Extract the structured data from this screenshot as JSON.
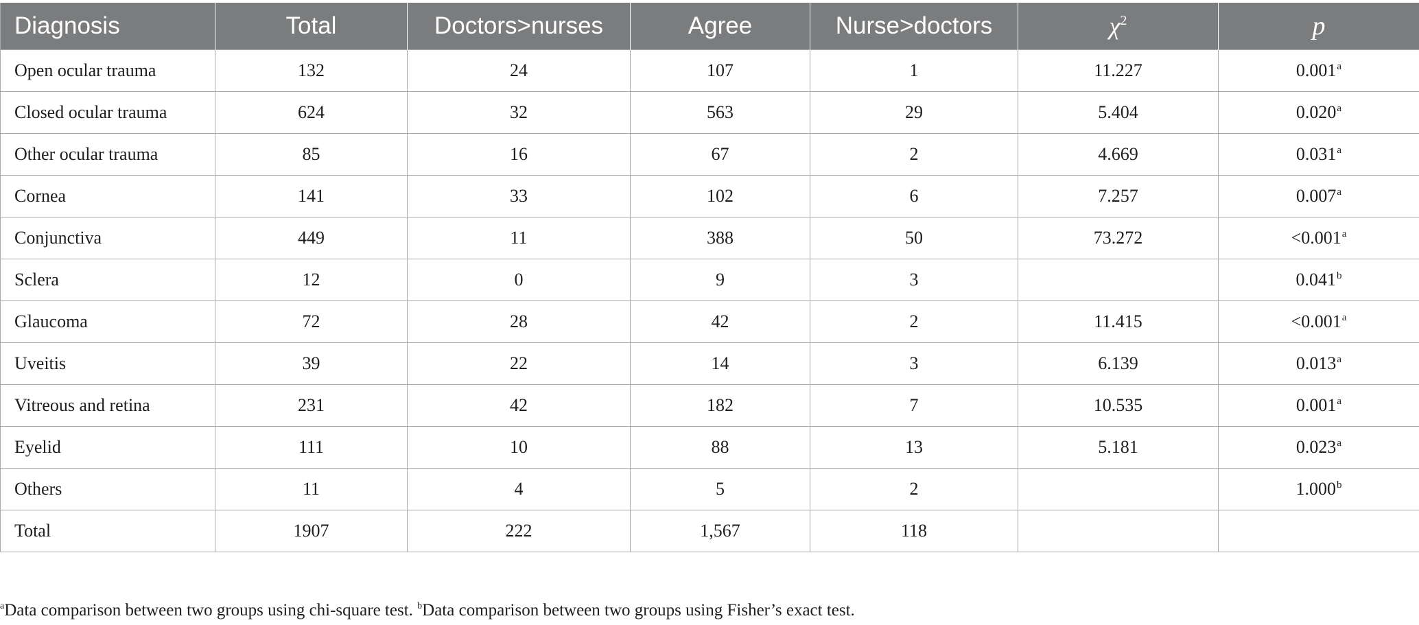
{
  "table": {
    "headers": [
      "Diagnosis",
      "Total",
      "Doctors>nurses",
      "Agree",
      "Nurse>doctors",
      "χ",
      "p"
    ],
    "chi_superscript": "2",
    "rows": [
      {
        "diagnosis": "Open ocular trauma",
        "total": "132",
        "doctors_gt_nurses": "24",
        "agree": "107",
        "nurse_gt_doctors": "1",
        "chi2": "11.227",
        "p": "0.001",
        "p_mark": "a"
      },
      {
        "diagnosis": "Closed ocular trauma",
        "total": "624",
        "doctors_gt_nurses": "32",
        "agree": "563",
        "nurse_gt_doctors": "29",
        "chi2": "5.404",
        "p": "0.020",
        "p_mark": "a"
      },
      {
        "diagnosis": "Other ocular trauma",
        "total": "85",
        "doctors_gt_nurses": "16",
        "agree": "67",
        "nurse_gt_doctors": "2",
        "chi2": "4.669",
        "p": "0.031",
        "p_mark": "a"
      },
      {
        "diagnosis": "Cornea",
        "total": "141",
        "doctors_gt_nurses": "33",
        "agree": "102",
        "nurse_gt_doctors": "6",
        "chi2": "7.257",
        "p": "0.007",
        "p_mark": "a"
      },
      {
        "diagnosis": "Conjunctiva",
        "total": "449",
        "doctors_gt_nurses": "11",
        "agree": "388",
        "nurse_gt_doctors": "50",
        "chi2": "73.272",
        "p": "<0.001",
        "p_mark": "a"
      },
      {
        "diagnosis": "Sclera",
        "total": "12",
        "doctors_gt_nurses": "0",
        "agree": "9",
        "nurse_gt_doctors": "3",
        "chi2": "",
        "p": "0.041",
        "p_mark": "b"
      },
      {
        "diagnosis": "Glaucoma",
        "total": "72",
        "doctors_gt_nurses": "28",
        "agree": "42",
        "nurse_gt_doctors": "2",
        "chi2": "11.415",
        "p": "<0.001",
        "p_mark": "a"
      },
      {
        "diagnosis": "Uveitis",
        "total": "39",
        "doctors_gt_nurses": "22",
        "agree": "14",
        "nurse_gt_doctors": "3",
        "chi2": "6.139",
        "p": "0.013",
        "p_mark": "a"
      },
      {
        "diagnosis": "Vitreous and retina",
        "total": "231",
        "doctors_gt_nurses": "42",
        "agree": "182",
        "nurse_gt_doctors": "7",
        "chi2": "10.535",
        "p": "0.001",
        "p_mark": "a"
      },
      {
        "diagnosis": "Eyelid",
        "total": "111",
        "doctors_gt_nurses": "10",
        "agree": "88",
        "nurse_gt_doctors": "13",
        "chi2": "5.181",
        "p": "0.023",
        "p_mark": "a"
      },
      {
        "diagnosis": "Others",
        "total": "11",
        "doctors_gt_nurses": "4",
        "agree": "5",
        "nurse_gt_doctors": "2",
        "chi2": "",
        "p": "1.000",
        "p_mark": "b"
      },
      {
        "diagnosis": "Total",
        "total": "1907",
        "doctors_gt_nurses": "222",
        "agree": "1,567",
        "nurse_gt_doctors": "118",
        "chi2": "",
        "p": "",
        "p_mark": ""
      }
    ]
  },
  "footnote": {
    "a_mark": "a",
    "a_text": "Data comparison between two groups using chi-square test. ",
    "b_mark": "b",
    "b_text": "Data comparison between two groups using Fisher’s exact test."
  },
  "colors": {
    "header_bg": "#7b7c7e",
    "header_text": "#ffffff",
    "grid": "#a8a8a8",
    "body_text": "#1e1e1e"
  }
}
